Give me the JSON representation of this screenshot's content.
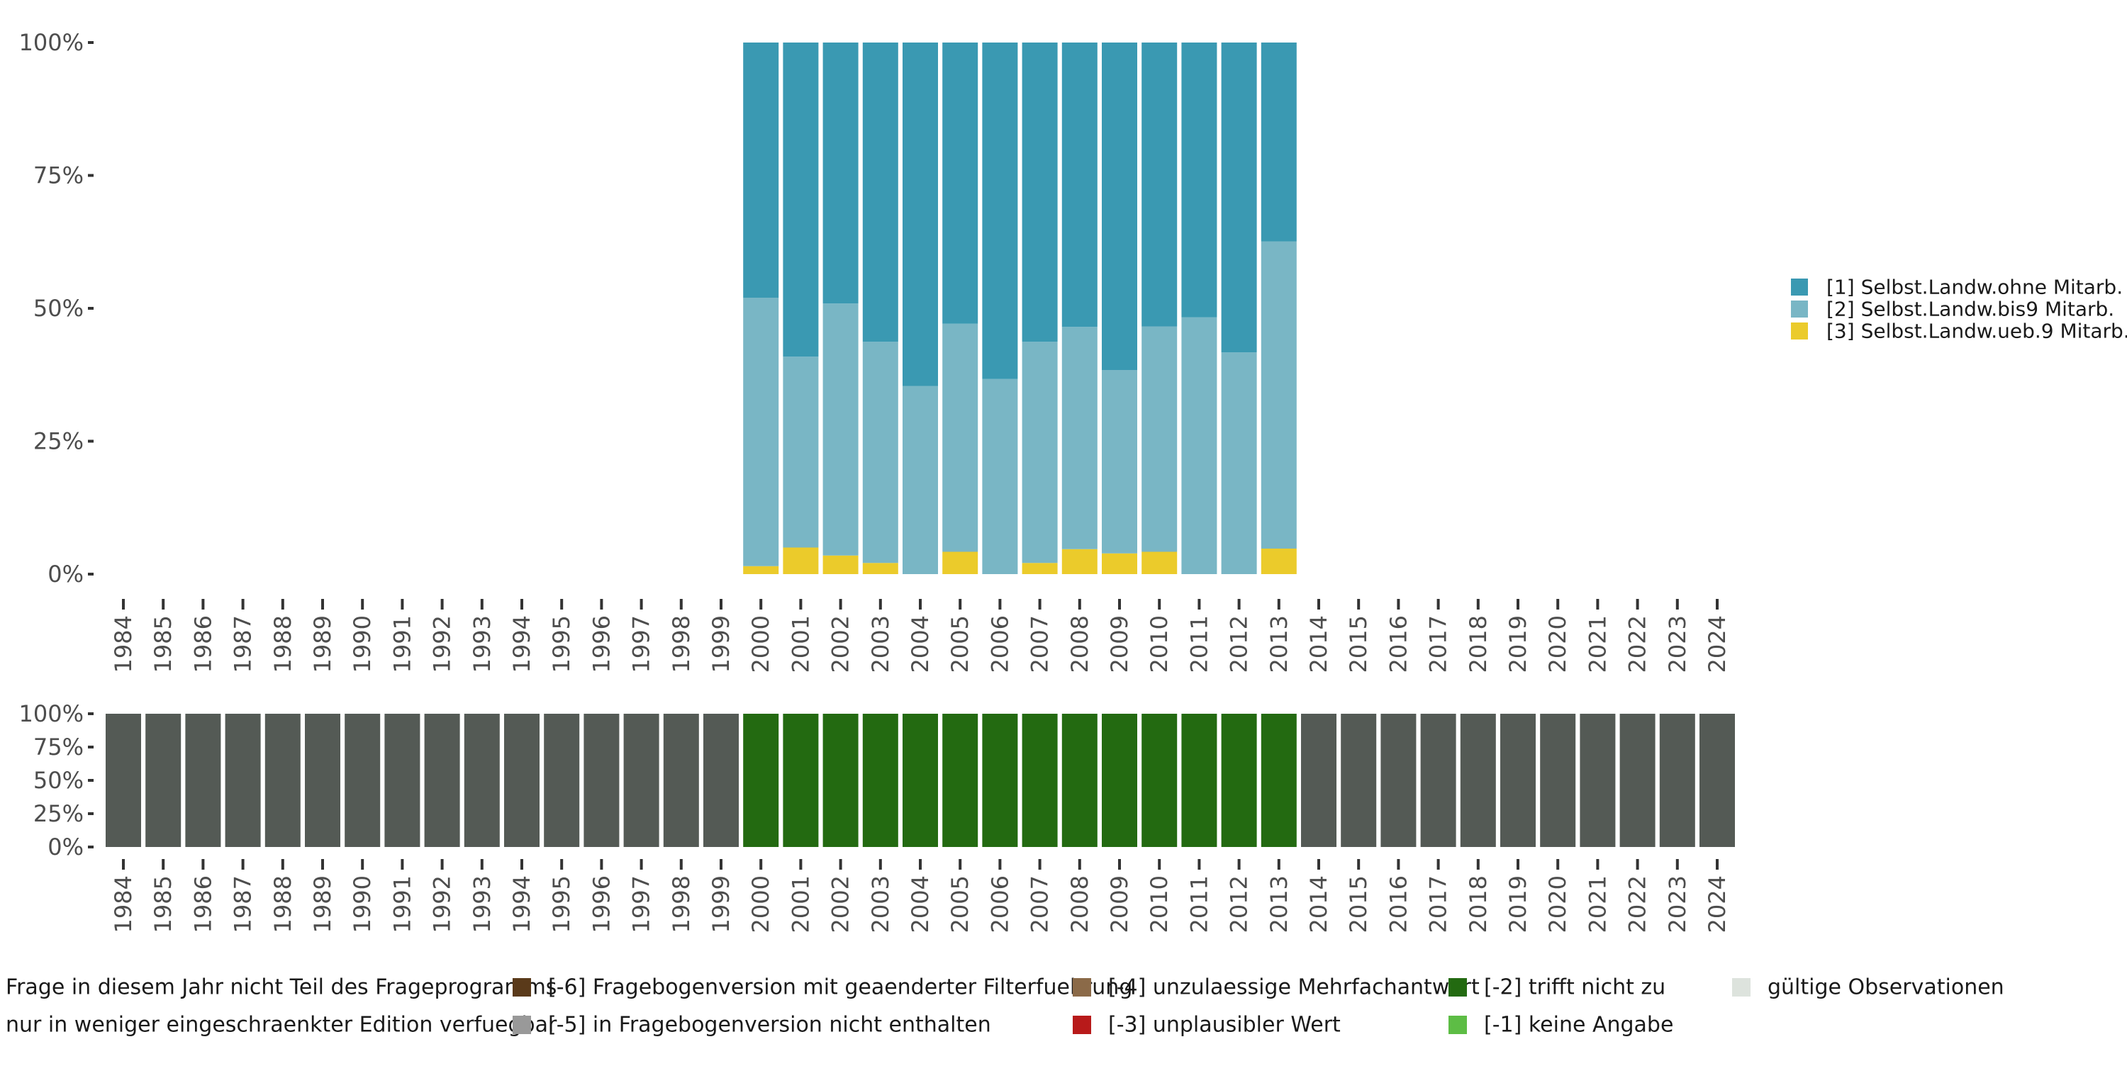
{
  "chart_data": [
    {
      "type": "bar",
      "stacked": true,
      "percent": true,
      "title": "",
      "xlabel": "",
      "ylabel": "",
      "ylim": [
        0,
        100
      ],
      "y_ticks": [
        "0%",
        "25%",
        "50%",
        "75%",
        "100%"
      ],
      "categories": [
        "1984",
        "1985",
        "1986",
        "1987",
        "1988",
        "1989",
        "1990",
        "1991",
        "1992",
        "1993",
        "1994",
        "1995",
        "1996",
        "1997",
        "1998",
        "1999",
        "2000",
        "2001",
        "2002",
        "2003",
        "2004",
        "2005",
        "2006",
        "2007",
        "2008",
        "2009",
        "2010",
        "2011",
        "2012",
        "2013",
        "2014",
        "2015",
        "2016",
        "2017",
        "2018",
        "2019",
        "2020",
        "2021",
        "2022",
        "2023",
        "2024"
      ],
      "legend_position": "right",
      "series": [
        {
          "name": "[3] Selbst.Landw.ueb.9 Mitarb.",
          "color": "#ebcb2b",
          "values": [
            null,
            null,
            null,
            null,
            null,
            null,
            null,
            null,
            null,
            null,
            null,
            null,
            null,
            null,
            null,
            null,
            1.5,
            5.0,
            3.5,
            2.1,
            0,
            4.2,
            0,
            2.1,
            4.7,
            3.9,
            4.2,
            0,
            0,
            4.8,
            null,
            null,
            null,
            null,
            null,
            null,
            null,
            null,
            null,
            null,
            null
          ]
        },
        {
          "name": "[2] Selbst.Landw.bis9 Mitarb.",
          "color": "#79b6c5",
          "values": [
            null,
            null,
            null,
            null,
            null,
            null,
            null,
            null,
            null,
            null,
            null,
            null,
            null,
            null,
            null,
            null,
            50.5,
            35.9,
            47.4,
            41.6,
            35.4,
            42.9,
            36.7,
            41.6,
            41.8,
            34.5,
            42.4,
            48.3,
            41.7,
            57.8,
            null,
            null,
            null,
            null,
            null,
            null,
            null,
            null,
            null,
            null,
            null
          ]
        },
        {
          "name": "[1] Selbst.Landw.ohne Mitarb.",
          "color": "#3a99b2",
          "values": [
            null,
            null,
            null,
            null,
            null,
            null,
            null,
            null,
            null,
            null,
            null,
            null,
            null,
            null,
            null,
            null,
            48.0,
            59.1,
            49.1,
            56.3,
            64.6,
            52.9,
            63.3,
            56.3,
            53.5,
            61.6,
            53.4,
            51.7,
            58.3,
            37.4,
            null,
            null,
            null,
            null,
            null,
            null,
            null,
            null,
            null,
            null,
            null
          ]
        }
      ]
    },
    {
      "type": "bar",
      "stacked": true,
      "percent": true,
      "title": "",
      "xlabel": "",
      "ylabel": "",
      "ylim": [
        0,
        100
      ],
      "y_ticks": [
        "0%",
        "25%",
        "50%",
        "75%",
        "100%"
      ],
      "categories": [
        "1984",
        "1985",
        "1986",
        "1987",
        "1988",
        "1989",
        "1990",
        "1991",
        "1992",
        "1993",
        "1994",
        "1995",
        "1996",
        "1997",
        "1998",
        "1999",
        "2000",
        "2001",
        "2002",
        "2003",
        "2004",
        "2005",
        "2006",
        "2007",
        "2008",
        "2009",
        "2010",
        "2011",
        "2012",
        "2013",
        "2014",
        "2015",
        "2016",
        "2017",
        "2018",
        "2019",
        "2020",
        "2021",
        "2022",
        "2023",
        "2024"
      ],
      "legend_position": "bottom",
      "series": [
        {
          "name": "Frage in diesem Jahr nicht Teil des Frageprogramms",
          "color": "#545a55",
          "values": [
            100,
            100,
            100,
            100,
            100,
            100,
            100,
            100,
            100,
            100,
            100,
            100,
            100,
            100,
            100,
            100,
            0,
            0,
            0,
            0,
            0,
            0,
            0,
            0,
            0,
            0,
            0,
            0,
            0,
            0,
            100,
            100,
            100,
            100,
            100,
            100,
            100,
            100,
            100,
            100,
            100
          ]
        },
        {
          "name": "[-2] trifft nicht zu",
          "color": "#236a11",
          "values": [
            0,
            0,
            0,
            0,
            0,
            0,
            0,
            0,
            0,
            0,
            0,
            0,
            0,
            0,
            0,
            0,
            100,
            100,
            100,
            100,
            100,
            100,
            100,
            100,
            100,
            100,
            100,
            100,
            100,
            100,
            0,
            0,
            0,
            0,
            0,
            0,
            0,
            0,
            0,
            0,
            0
          ]
        }
      ]
    }
  ],
  "bottom_legend": {
    "items": [
      {
        "label": "Frage in diesem Jahr nicht Teil des Frageprogramms",
        "color": "#545a55"
      },
      {
        "label": "nur in weniger eingeschraenkter Edition verfuegbar",
        "color": "#a0a0a0"
      },
      {
        "label": "[-6] Fragebogenversion mit geaenderter Filterfuehrung",
        "color": "#5a3a1a"
      },
      {
        "label": "[-5] in Fragebogenversion nicht enthalten",
        "color": "#999999"
      },
      {
        "label": "[-4] unzulaessige Mehrfachantwort",
        "color": "#8b6a48"
      },
      {
        "label": "[-3] unplausibler Wert",
        "color": "#b81a1a"
      },
      {
        "label": "[-2] trifft nicht zu",
        "color": "#236a11"
      },
      {
        "label": "[-1] keine Angabe",
        "color": "#5dbd45"
      },
      {
        "label": "gültige Observationen",
        "color": "#dde3dd"
      }
    ]
  }
}
